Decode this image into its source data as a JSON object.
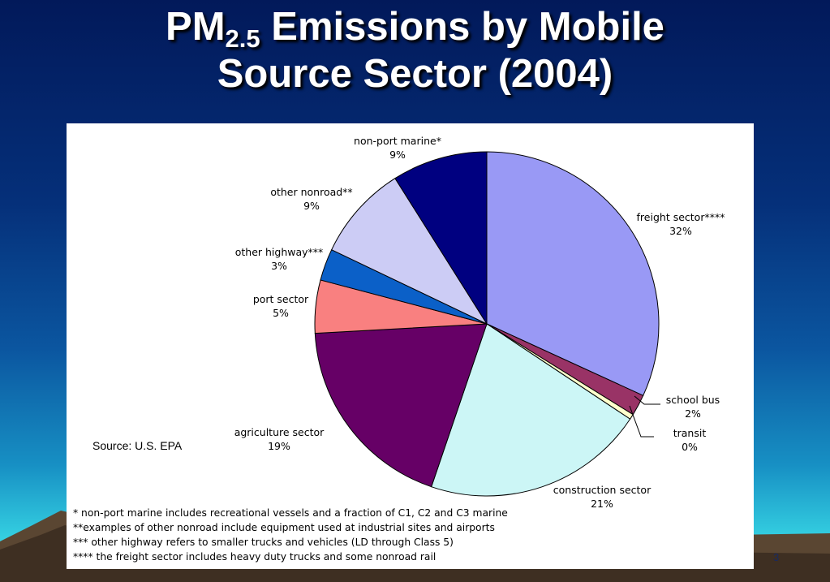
{
  "slide": {
    "title_prefix": "PM",
    "title_subscript": "2.5",
    "title_line1_rest": " Emissions by Mobile",
    "title_line2": "Source Sector (2004)",
    "source": "Source: U.S. EPA",
    "slide_number": "3",
    "footnotes": [
      "* non-port marine includes recreational vessels and a fraction of C1, C2 and C3 marine",
      "**examples of other nonroad include equipment used at industrial sites and airports",
      "*** other highway refers to smaller trucks and vehicles (LD through Class 5)",
      "**** the freight sector includes heavy duty trucks and some nonroad rail"
    ]
  },
  "chart_data": {
    "type": "pie",
    "start_angle_deg": 0,
    "direction": "clockwise",
    "slices": [
      {
        "label": "freight sector****",
        "value": 32,
        "display": "32%",
        "color": "#9999f5"
      },
      {
        "label": "school bus",
        "value": 2,
        "display": "2%",
        "color": "#993366"
      },
      {
        "label": "transit",
        "value": 0.5,
        "display": "0%",
        "color": "#ffffcc"
      },
      {
        "label": "construction sector",
        "value": 21,
        "display": "21%",
        "color": "#ccf6f6"
      },
      {
        "label": "agriculture sector",
        "value": 19,
        "display": "19%",
        "color": "#660066"
      },
      {
        "label": "port sector",
        "value": 5,
        "display": "5%",
        "color": "#f98080"
      },
      {
        "label": "other highway***",
        "value": 3,
        "display": "3%",
        "color": "#0b60c8"
      },
      {
        "label": "other nonroad**",
        "value": 9,
        "display": "9%",
        "color": "#ccccf5"
      },
      {
        "label": "non-port marine*",
        "value": 9,
        "display": "9%",
        "color": "#000080"
      }
    ]
  }
}
